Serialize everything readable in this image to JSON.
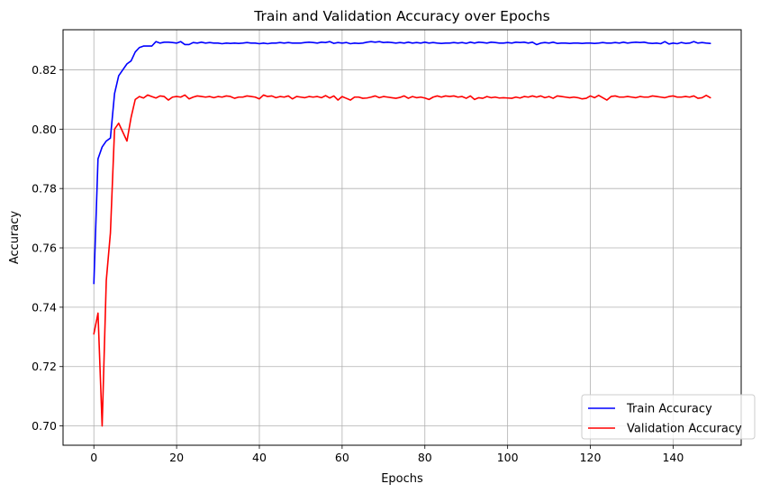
{
  "chart_data": {
    "type": "line",
    "title": "Train and Validation Accuracy over Epochs",
    "xlabel": "Epochs",
    "ylabel": "Accuracy",
    "xlim": [
      -7.45,
      156.45
    ],
    "ylim": [
      0.6935,
      0.8335
    ],
    "xticks": [
      0,
      20,
      40,
      60,
      80,
      100,
      120,
      140
    ],
    "xtick_labels": [
      "0",
      "20",
      "40",
      "60",
      "80",
      "100",
      "120",
      "140"
    ],
    "yticks": [
      0.7,
      0.72,
      0.74,
      0.76,
      0.78,
      0.8,
      0.82
    ],
    "ytick_labels": [
      "0.70",
      "0.72",
      "0.74",
      "0.76",
      "0.78",
      "0.80",
      "0.82"
    ],
    "grid": true,
    "legend_position": "lower-right",
    "x": [
      0,
      1,
      2,
      3,
      4,
      5,
      6,
      7,
      8,
      9,
      10,
      11,
      12,
      13,
      14,
      15,
      16,
      17,
      18,
      19,
      20,
      21,
      22,
      23,
      24,
      25,
      26,
      27,
      28,
      29,
      30,
      31,
      32,
      33,
      34,
      35,
      36,
      37,
      38,
      39,
      40,
      41,
      42,
      43,
      44,
      45,
      46,
      47,
      48,
      49,
      50,
      51,
      52,
      53,
      54,
      55,
      56,
      57,
      58,
      59,
      60,
      61,
      62,
      63,
      64,
      65,
      66,
      67,
      68,
      69,
      70,
      71,
      72,
      73,
      74,
      75,
      76,
      77,
      78,
      79,
      80,
      81,
      82,
      83,
      84,
      85,
      86,
      87,
      88,
      89,
      90,
      91,
      92,
      93,
      94,
      95,
      96,
      97,
      98,
      99,
      100,
      101,
      102,
      103,
      104,
      105,
      106,
      107,
      108,
      109,
      110,
      111,
      112,
      113,
      114,
      115,
      116,
      117,
      118,
      119,
      120,
      121,
      122,
      123,
      124,
      125,
      126,
      127,
      128,
      129,
      130,
      131,
      132,
      133,
      134,
      135,
      136,
      137,
      138,
      139,
      140,
      141,
      142,
      143,
      144,
      145,
      146,
      147,
      148,
      149
    ],
    "series": [
      {
        "name": "Train Accuracy",
        "color": "#0000ff",
        "values": [
          0.748,
          0.79,
          0.794,
          0.796,
          0.797,
          0.812,
          0.818,
          0.82,
          0.822,
          0.823,
          0.826,
          0.8275,
          0.828,
          0.828,
          0.828,
          0.8295,
          0.829,
          0.8293,
          0.8293,
          0.8292,
          0.829,
          0.8295,
          0.8285,
          0.8285,
          0.8292,
          0.829,
          0.8293,
          0.829,
          0.8292,
          0.829,
          0.829,
          0.8288,
          0.829,
          0.8289,
          0.829,
          0.8289,
          0.829,
          0.8292,
          0.829,
          0.829,
          0.8288,
          0.829,
          0.8288,
          0.829,
          0.829,
          0.8292,
          0.829,
          0.8292,
          0.829,
          0.829,
          0.829,
          0.8292,
          0.8293,
          0.8292,
          0.829,
          0.8293,
          0.8292,
          0.8295,
          0.8289,
          0.8292,
          0.829,
          0.8292,
          0.8288,
          0.829,
          0.8289,
          0.829,
          0.8293,
          0.8295,
          0.8293,
          0.8295,
          0.8292,
          0.8293,
          0.8292,
          0.829,
          0.8292,
          0.829,
          0.8293,
          0.829,
          0.8292,
          0.829,
          0.8293,
          0.829,
          0.8292,
          0.829,
          0.8289,
          0.829,
          0.829,
          0.8292,
          0.829,
          0.8292,
          0.8289,
          0.8293,
          0.829,
          0.8293,
          0.8292,
          0.829,
          0.8293,
          0.8292,
          0.829,
          0.829,
          0.8292,
          0.829,
          0.8293,
          0.8292,
          0.8293,
          0.829,
          0.8293,
          0.8285,
          0.829,
          0.8292,
          0.829,
          0.8293,
          0.8289,
          0.829,
          0.829,
          0.8289,
          0.829,
          0.829,
          0.8289,
          0.829,
          0.829,
          0.8289,
          0.829,
          0.8292,
          0.829,
          0.829,
          0.8292,
          0.829,
          0.8293,
          0.829,
          0.8292,
          0.8293,
          0.8292,
          0.8293,
          0.829,
          0.8289,
          0.829,
          0.8288,
          0.8295,
          0.8287,
          0.829,
          0.8288,
          0.8292,
          0.8289,
          0.829,
          0.8295,
          0.829,
          0.8292,
          0.829,
          0.8289
        ]
      },
      {
        "name": "Validation Accuracy",
        "color": "#ff0000",
        "values": [
          0.731,
          0.738,
          0.7,
          0.749,
          0.765,
          0.8,
          0.802,
          0.799,
          0.796,
          0.804,
          0.81,
          0.811,
          0.8105,
          0.8115,
          0.811,
          0.8105,
          0.8112,
          0.811,
          0.8098,
          0.8108,
          0.811,
          0.8108,
          0.8115,
          0.8102,
          0.8108,
          0.8112,
          0.811,
          0.8108,
          0.811,
          0.8106,
          0.811,
          0.8108,
          0.8112,
          0.811,
          0.8104,
          0.8108,
          0.8108,
          0.8112,
          0.811,
          0.8108,
          0.8102,
          0.8115,
          0.811,
          0.8112,
          0.8106,
          0.811,
          0.8108,
          0.8112,
          0.8102,
          0.811,
          0.8108,
          0.8106,
          0.811,
          0.8108,
          0.811,
          0.8106,
          0.8113,
          0.8105,
          0.8112,
          0.8098,
          0.811,
          0.8104,
          0.8098,
          0.8108,
          0.8108,
          0.8104,
          0.8105,
          0.8108,
          0.8112,
          0.8106,
          0.811,
          0.8108,
          0.8106,
          0.8104,
          0.8107,
          0.8112,
          0.8104,
          0.811,
          0.8106,
          0.8108,
          0.8105,
          0.81,
          0.8108,
          0.8112,
          0.8108,
          0.8112,
          0.811,
          0.8112,
          0.8108,
          0.811,
          0.8104,
          0.8112,
          0.81,
          0.8106,
          0.8104,
          0.811,
          0.8106,
          0.8108,
          0.8105,
          0.8106,
          0.8105,
          0.8104,
          0.8108,
          0.8105,
          0.811,
          0.8108,
          0.8112,
          0.8108,
          0.8112,
          0.8106,
          0.811,
          0.8104,
          0.8112,
          0.811,
          0.8108,
          0.8106,
          0.8108,
          0.8106,
          0.8102,
          0.8104,
          0.8112,
          0.8106,
          0.8114,
          0.8106,
          0.8098,
          0.811,
          0.8112,
          0.8108,
          0.8108,
          0.811,
          0.8108,
          0.8106,
          0.811,
          0.8108,
          0.8108,
          0.8112,
          0.811,
          0.8108,
          0.8106,
          0.811,
          0.8112,
          0.8108,
          0.8108,
          0.811,
          0.8108,
          0.8112,
          0.8104,
          0.8106,
          0.8114,
          0.8106
        ]
      }
    ]
  }
}
